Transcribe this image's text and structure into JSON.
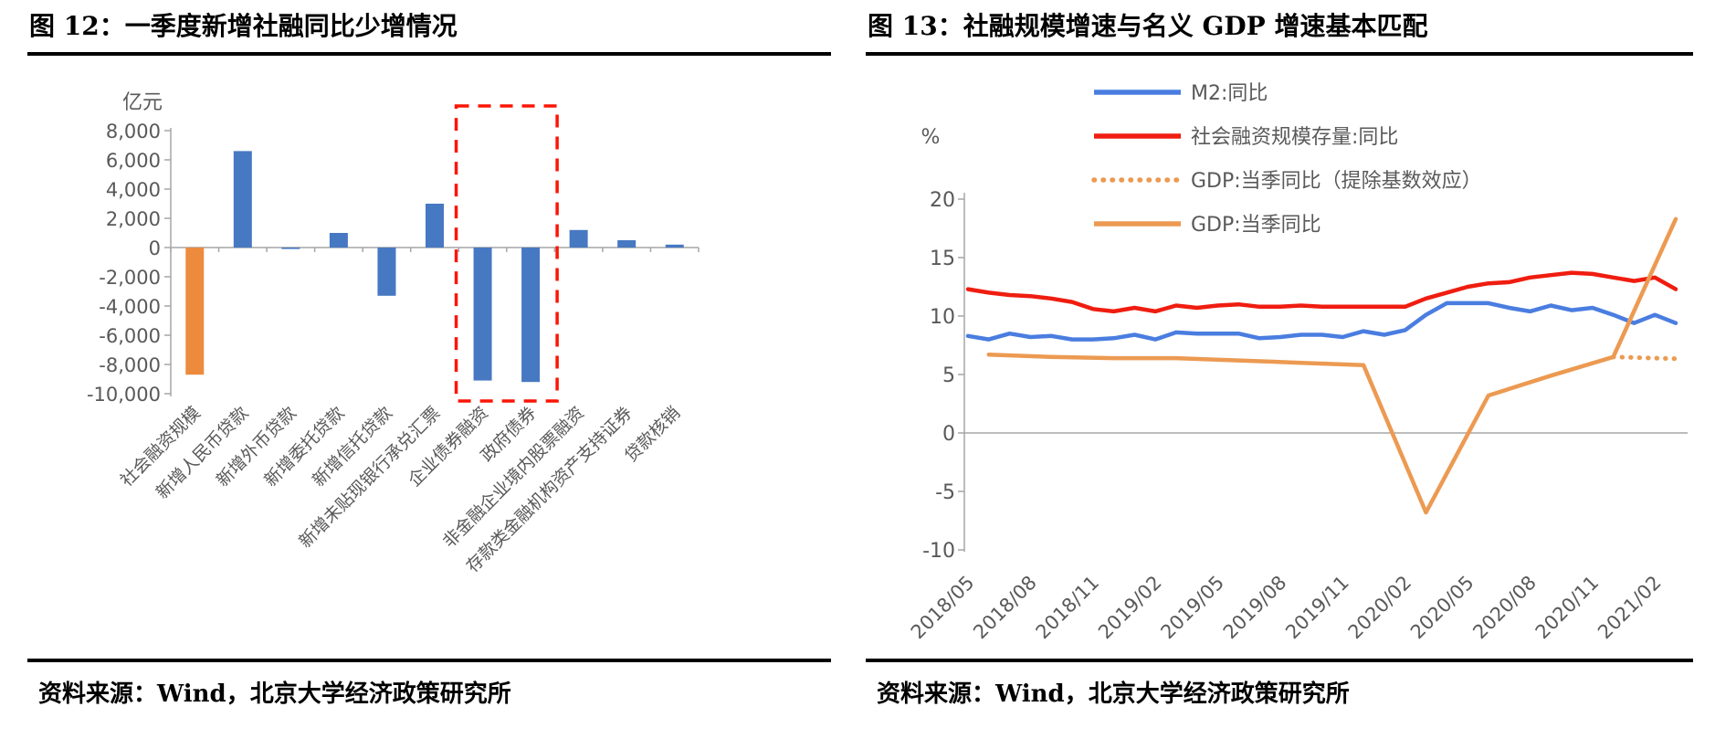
{
  "page": {
    "background": "#ffffff"
  },
  "chart_data": [
    {
      "id": "fig12",
      "type": "bar",
      "title": "图 12：一季度新增社融同比少增情况",
      "source": "资料来源：Wind，北京大学经济政策研究所",
      "ylabel": "亿元",
      "ylim": [
        -10000,
        8000
      ],
      "ytick_step": 2000,
      "categories": [
        "社会融资规模",
        "新增人民币贷款",
        "新增外币贷款",
        "新增委托贷款",
        "新增信托贷款",
        "新增未贴现银行承兑汇票",
        "企业债券融资",
        "政府债券",
        "非金融企业境内股票融资",
        "存款类金融机构资产支持证券",
        "贷款核销"
      ],
      "values": [
        -8700,
        6600,
        -100,
        1000,
        -3300,
        3000,
        -9100,
        -9200,
        1200,
        500,
        200
      ],
      "highlight": {
        "categories": [
          "企业债券融资",
          "政府债券"
        ],
        "style": "dashed-red-box"
      },
      "colors": {
        "first_bar": "#EC8B3E",
        "bars": "#4778C2",
        "axis": "#A6A6A6",
        "tick_text": "#595959",
        "highlight_box": "#FC1505"
      },
      "legend_position": "none",
      "grid": false
    },
    {
      "id": "fig13",
      "type": "line",
      "title": "图 13：社融规模增速与名义 GDP 增速基本匹配",
      "source": "资料来源：Wind，北京大学经济政策研究所",
      "ylabel": "%",
      "ylim": [
        -10,
        20
      ],
      "yticks": [
        20,
        15,
        10,
        5,
        0,
        -5,
        -10
      ],
      "x": [
        "2018/05",
        "2018/06",
        "2018/07",
        "2018/08",
        "2018/09",
        "2018/10",
        "2018/11",
        "2018/12",
        "2019/01",
        "2019/02",
        "2019/03",
        "2019/04",
        "2019/05",
        "2019/06",
        "2019/07",
        "2019/08",
        "2019/09",
        "2019/10",
        "2019/11",
        "2019/12",
        "2020/01",
        "2020/02",
        "2020/03",
        "2020/04",
        "2020/05",
        "2020/06",
        "2020/07",
        "2020/08",
        "2020/09",
        "2020/10",
        "2020/11",
        "2020/12",
        "2021/01",
        "2021/02",
        "2021/03"
      ],
      "xtick_every": 3,
      "series": [
        {
          "name": "M2:同比",
          "color": "#4A7DE0",
          "style": "solid",
          "values": [
            8.3,
            8.0,
            8.5,
            8.2,
            8.3,
            8.0,
            8.0,
            8.1,
            8.4,
            8.0,
            8.6,
            8.5,
            8.5,
            8.5,
            8.1,
            8.2,
            8.4,
            8.4,
            8.2,
            8.7,
            8.4,
            8.8,
            10.1,
            11.1,
            11.1,
            11.1,
            10.7,
            10.4,
            10.9,
            10.5,
            10.7,
            10.1,
            9.4,
            10.1,
            9.4
          ]
        },
        {
          "name": "社会融资规模存量:同比",
          "color": "#EF1D10",
          "style": "solid",
          "values": [
            12.3,
            12.0,
            11.8,
            11.7,
            11.5,
            11.2,
            10.6,
            10.4,
            10.7,
            10.4,
            10.9,
            10.7,
            10.9,
            11.0,
            10.8,
            10.8,
            10.9,
            10.8,
            10.8,
            10.8,
            10.8,
            10.8,
            11.5,
            12.0,
            12.5,
            12.8,
            12.9,
            13.3,
            13.5,
            13.7,
            13.6,
            13.3,
            13.0,
            13.3,
            12.3
          ]
        },
        {
          "name": "GDP:当季同比（提除基数效应）",
          "color": "#EC9A52",
          "style": "dotted",
          "points": [
            [
              "2020/12",
              6.5
            ],
            [
              "2021/01",
              6.45
            ],
            [
              "2021/02",
              6.4
            ],
            [
              "2021/03",
              6.35
            ]
          ]
        },
        {
          "name": "GDP:当季同比",
          "color": "#EC9A52",
          "style": "solid",
          "points": [
            [
              "2018/06",
              6.7
            ],
            [
              "2018/09",
              6.5
            ],
            [
              "2018/12",
              6.4
            ],
            [
              "2019/03",
              6.4
            ],
            [
              "2019/06",
              6.2
            ],
            [
              "2019/09",
              6.0
            ],
            [
              "2019/12",
              5.8
            ],
            [
              "2020/03",
              -6.8
            ],
            [
              "2020/06",
              3.2
            ],
            [
              "2020/09",
              4.9
            ],
            [
              "2020/12",
              6.5
            ],
            [
              "2021/03",
              18.3
            ]
          ]
        }
      ],
      "legend": {
        "position": "top",
        "order": [
          0,
          1,
          2,
          3
        ]
      },
      "colors": {
        "axis": "#A6A6A6",
        "tick_text": "#595959",
        "legend_text": "#595959"
      },
      "grid": false
    }
  ]
}
